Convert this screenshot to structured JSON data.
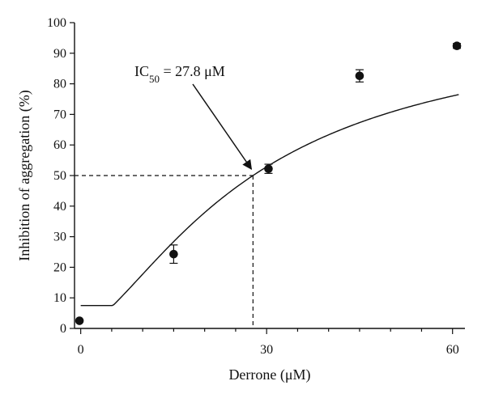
{
  "chart_data": {
    "type": "scatter",
    "title": "",
    "xlabel": "Derrone (μM)",
    "ylabel": "Inhibition of aggregation (%)",
    "xlim": [
      -1,
      62
    ],
    "ylim": [
      0,
      100
    ],
    "x_ticks": [
      0,
      30,
      60
    ],
    "x_tick_labels": [
      "0",
      "30",
      "60"
    ],
    "y_ticks": [
      0,
      10,
      20,
      30,
      40,
      50,
      60,
      70,
      80,
      90,
      100
    ],
    "y_tick_labels": [
      "0",
      "10",
      "20",
      "30",
      "40",
      "50",
      "60",
      "70",
      "80",
      "90",
      "100"
    ],
    "series": [
      {
        "points": [
          {
            "x": -0.2,
            "y": 2.5,
            "err": 0
          },
          {
            "x": 15,
            "y": 24.3,
            "err": 3
          },
          {
            "x": 30.3,
            "y": 52.2,
            "err": 1.5
          },
          {
            "x": 45,
            "y": 82.6,
            "err": 2
          },
          {
            "x": 60.7,
            "y": 92.4,
            "err": 0.8
          }
        ],
        "fit_curve": {
          "ic50": 27.8,
          "bottom": 0,
          "top": 100,
          "hill": 1.5
        }
      }
    ],
    "annotation": {
      "text_prefix": "IC",
      "text_subscript": "50",
      "text_suffix": " = 27.8 μM",
      "ic50_value": 27.8,
      "half_inhibition": 50,
      "text_position": "upper-left",
      "arrow_target": [
        27.8,
        50
      ]
    },
    "grid": false,
    "legend": "none"
  }
}
